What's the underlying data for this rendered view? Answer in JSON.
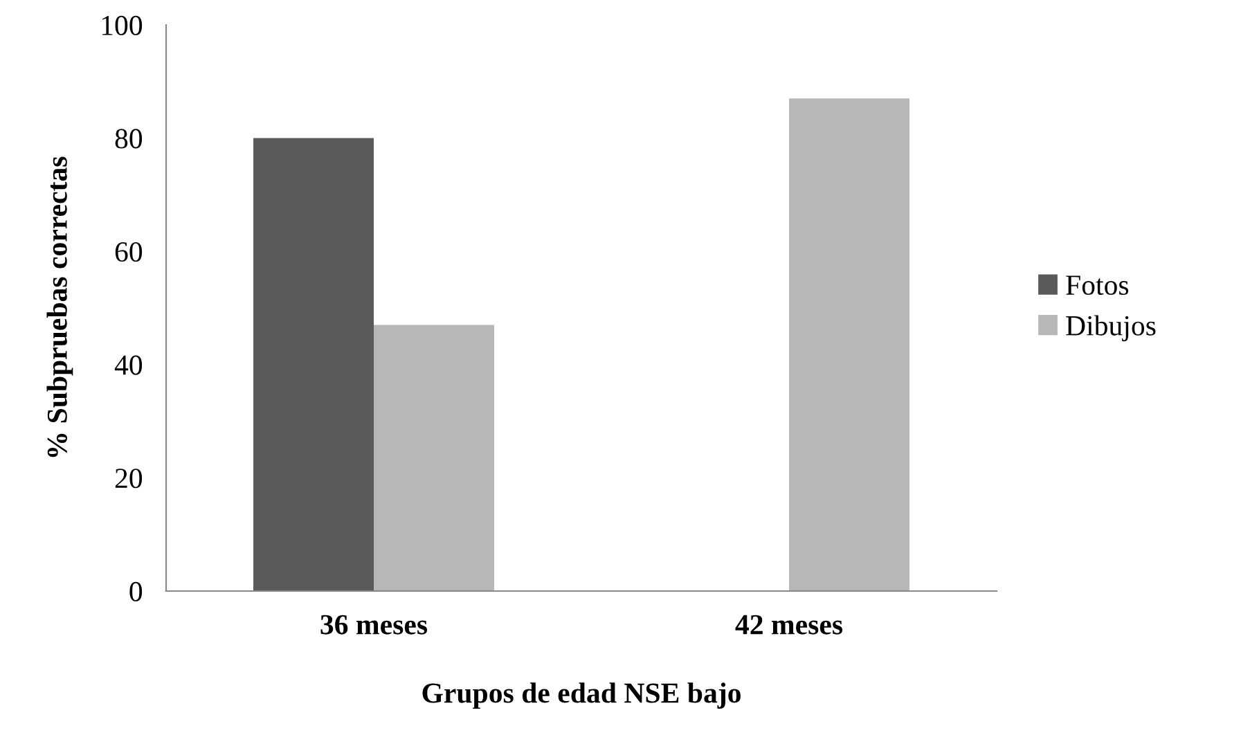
{
  "chart_data": {
    "type": "bar",
    "xlabel": "Grupos de edad NSE bajo",
    "ylabel": "% Subpruebas correctas",
    "categories": [
      "36 meses",
      "42 meses"
    ],
    "series": [
      {
        "name": "Fotos",
        "color": "#5a5a5a",
        "values": [
          80,
          0
        ]
      },
      {
        "name": "Dibujos",
        "color": "#b7b7b7",
        "values": [
          47,
          87
        ]
      }
    ],
    "ylim": [
      0,
      100
    ],
    "yticks": [
      0,
      20,
      40,
      60,
      80,
      100
    ],
    "grid": false,
    "legend": "right"
  }
}
